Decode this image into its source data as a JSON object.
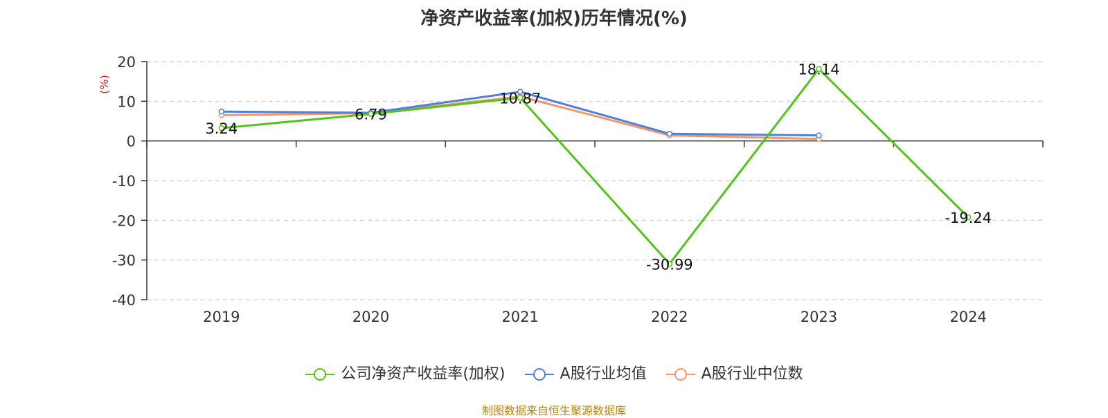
{
  "title": "净资产收益率(加权)历年情况(%)",
  "footer": "制图数据来自恒生聚源数据库",
  "chart_data": {
    "type": "line",
    "title": "净资产收益率(加权)历年情况(%)",
    "ylabel": "(%)",
    "ylim": [
      -40,
      20
    ],
    "yticks": [
      20,
      10,
      0,
      -10,
      -20,
      -30,
      -40
    ],
    "categories": [
      "2019",
      "2020",
      "2021",
      "2022",
      "2023",
      "2024"
    ],
    "grid": true,
    "legend_position": "bottom",
    "series": [
      {
        "name": "公司净资产收益率(加权)",
        "color": "#52c41a",
        "values": [
          3.24,
          6.79,
          10.87,
          -30.99,
          18.14,
          -19.24
        ],
        "labels": [
          "3.24",
          "6.79",
          "10.87",
          "-30.99",
          "18.14",
          "-19.24"
        ]
      },
      {
        "name": "A股行业均值",
        "color": "#4f7fdc",
        "values": [
          7.4,
          7.1,
          12.4,
          1.8,
          1.4,
          null
        ]
      },
      {
        "name": "A股行业中位数",
        "color": "#f4956a",
        "values": [
          6.5,
          7.0,
          11.2,
          1.4,
          0.5,
          null
        ]
      }
    ]
  }
}
